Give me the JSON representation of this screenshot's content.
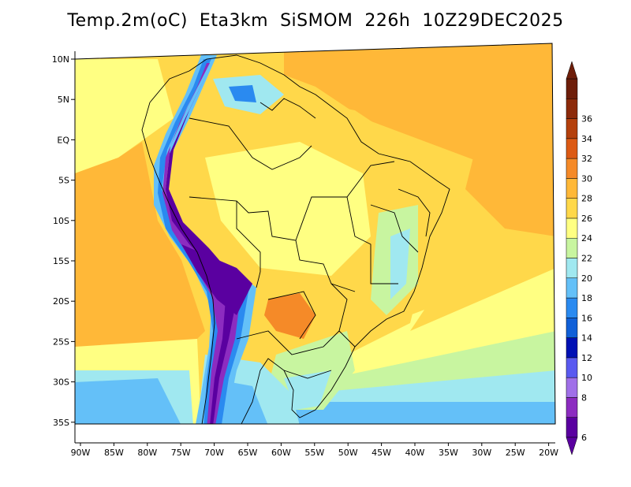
{
  "title": "Temp.2m(oC)  Eta3km  SiSMOM  226h  10Z29DEC2025",
  "variable": "Temp.2m",
  "units": "oC",
  "latitude_labels": [
    "10N",
    "5N",
    "EQ",
    "5S",
    "10S",
    "15S",
    "20S",
    "25S",
    "30S",
    "35S"
  ],
  "longitude_labels": [
    "90W",
    "85W",
    "80W",
    "75W",
    "70W",
    "65W",
    "60W",
    "55W",
    "50W",
    "45W",
    "40W",
    "35W",
    "30W",
    "25W",
    "20W"
  ],
  "colorbar": {
    "labels": [
      "6",
      "8",
      "10",
      "12",
      "14",
      "16",
      "18",
      "20",
      "22",
      "24",
      "26",
      "28",
      "30",
      "32",
      "34",
      "36"
    ],
    "colors": [
      "#5a00a0",
      "#8c2cc0",
      "#a070e8",
      "#5a5af0",
      "#0010b4",
      "#1060d8",
      "#2a8af0",
      "#64c0f8",
      "#a0e8f0",
      "#c8f5a0",
      "#ffff82",
      "#ffd84a",
      "#ffb838",
      "#f58a28",
      "#dc5a14",
      "#b4400c",
      "#8c2a0a",
      "#6e1e0a"
    ]
  },
  "colors": {
    "ocean_warm": "#ffb838",
    "land_background": "#ffd84a",
    "andes_cold": "#5a00a0",
    "south_cool": "#64c0f8",
    "chaco_hot": "#f58a28"
  }
}
